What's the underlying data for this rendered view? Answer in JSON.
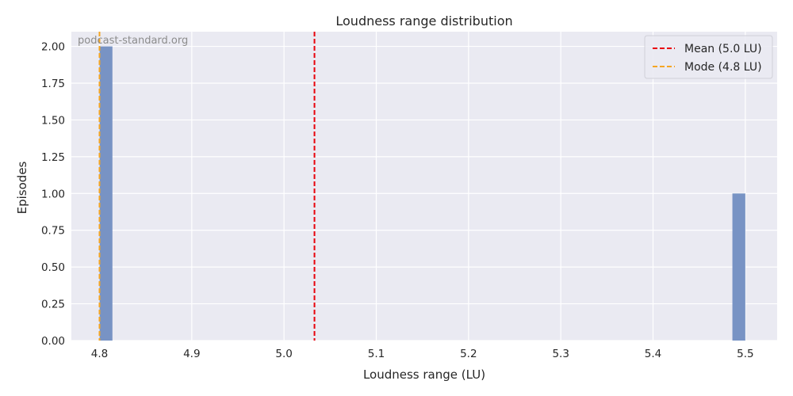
{
  "chart_data": {
    "type": "bar",
    "title": "Loudness range distribution",
    "xlabel": "Loudness range (LU)",
    "ylabel": "Episodes",
    "xlim": [
      4.7695,
      5.5345
    ],
    "ylim": [
      0,
      2.1
    ],
    "xticks": [
      4.8,
      4.9,
      5.0,
      5.1,
      5.2,
      5.3,
      5.4,
      5.5
    ],
    "xtick_labels": [
      "4.8",
      "4.9",
      "5.0",
      "5.1",
      "5.2",
      "5.3",
      "5.4",
      "5.5"
    ],
    "yticks": [
      0,
      0.25,
      0.5,
      0.75,
      1.0,
      1.25,
      1.5,
      1.75,
      2.0
    ],
    "ytick_labels": [
      "0.00",
      "0.25",
      "0.50",
      "0.75",
      "1.00",
      "1.25",
      "1.50",
      "1.75",
      "2.00"
    ],
    "bins": [
      {
        "x0": 4.8,
        "x1": 4.814,
        "value": 2
      },
      {
        "x0": 5.486,
        "x1": 5.5,
        "value": 1
      }
    ],
    "reference_lines": [
      {
        "x": 5.033,
        "label": "Mean (5.0 LU)",
        "color": "#e8000b",
        "style": "dashed"
      },
      {
        "x": 4.8,
        "label": "Mode (4.8 LU)",
        "color": "#f5a623",
        "style": "dashed"
      }
    ],
    "legend": [
      "Mean (5.0 LU)",
      "Mode (4.8 LU)"
    ],
    "legend_position": "top-right",
    "grid": true,
    "colors": {
      "bar": "#7893c4",
      "background": "#eaeaf2",
      "grid": "#ffffff"
    }
  },
  "watermark": "podcast-standard.org"
}
